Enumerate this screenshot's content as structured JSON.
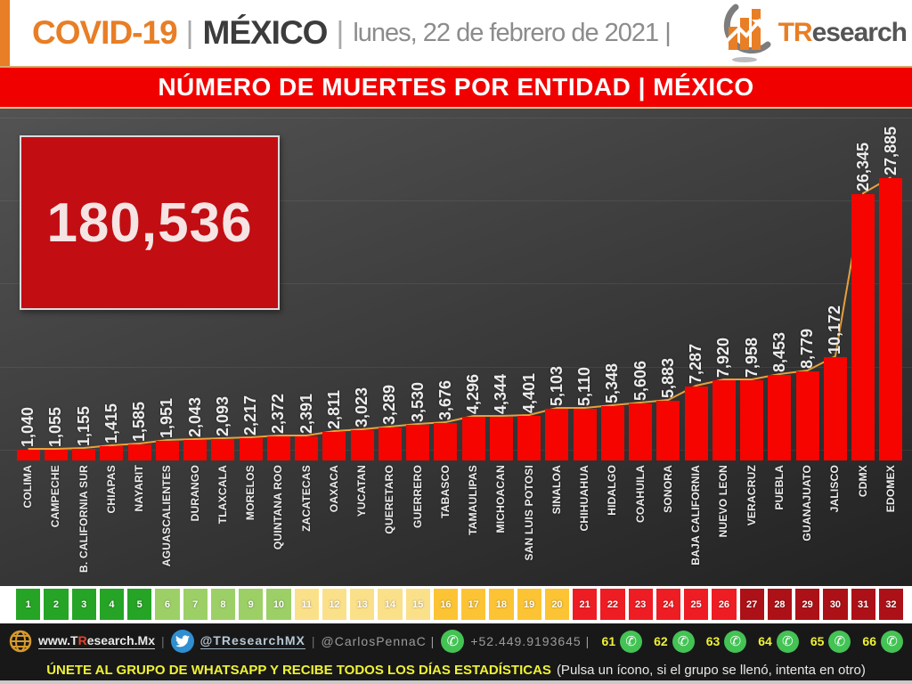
{
  "header": {
    "title": "COVID-19",
    "pipe": "|",
    "country": "MÉXICO",
    "date": "lunes, 22 de febrero de 2021 |",
    "brand_or": "TR",
    "brand_gr": "esearch"
  },
  "banner": {
    "text": "NÚMERO DE MUERTES POR ENTIDAD | MÉXICO"
  },
  "total": {
    "value": "180,536"
  },
  "chart_data": {
    "type": "bar",
    "title": "NÚMERO DE MUERTES POR ENTIDAD | MÉXICO",
    "categories": [
      "COLIMA",
      "CAMPECHE",
      "B. CALIFORNIA SUR",
      "CHIAPAS",
      "NAYARIT",
      "AGUASCALIENTES",
      "DURANGO",
      "TLAXCALA",
      "MORELOS",
      "QUINTANA ROO",
      "ZACATECAS",
      "OAXACA",
      "YUCATAN",
      "QUERETARO",
      "GUERRERO",
      "TABASCO",
      "TAMAULIPAS",
      "MICHOACAN",
      "SAN LUIS POTOSI",
      "SINALOA",
      "CHIHUAHUA",
      "HIDALGO",
      "COAHUILA",
      "SONORA",
      "BAJA CALIFORNIA",
      "NUEVO LEON",
      "VERACRUZ",
      "PUEBLA",
      "GUANAJUATO",
      "JALISCO",
      "CDMX",
      "EDOMEX"
    ],
    "values": [
      1040,
      1055,
      1155,
      1415,
      1585,
      1951,
      2043,
      2093,
      2217,
      2372,
      2391,
      2811,
      3023,
      3289,
      3530,
      3676,
      4296,
      4344,
      4401,
      5103,
      5110,
      5348,
      5606,
      5883,
      7287,
      7920,
      7958,
      8453,
      8779,
      10172,
      26345,
      27885
    ],
    "value_labels": [
      "1,040",
      "1,055",
      "1,155",
      "1,415",
      "1,585",
      "1,951",
      "2,043",
      "2,093",
      "2,217",
      "2,372",
      "2,391",
      "2,811",
      "3,023",
      "3,289",
      "3,530",
      "3,676",
      "4,296",
      "4,344",
      "4,401",
      "5,103",
      "5,110",
      "5,348",
      "5,606",
      "5,883",
      "7,287",
      "7,920",
      "7,958",
      "8,453",
      "8,779",
      "10,172",
      "26,345",
      "27,885"
    ],
    "total": 180536,
    "xlabel": "",
    "ylabel": "",
    "ylim": [
      0,
      28000
    ],
    "grid": "faint horizontal",
    "bar_color": "#F50400",
    "line_color": "#F2A73B"
  },
  "scale": {
    "groups": [
      {
        "from": 1,
        "to": 5,
        "color": "#26A426"
      },
      {
        "from": 6,
        "to": 10,
        "color": "#9CD066"
      },
      {
        "from": 11,
        "to": 15,
        "color": "#FBE08A"
      },
      {
        "from": 16,
        "to": 20,
        "color": "#FCC434"
      },
      {
        "from": 21,
        "to": 26,
        "color": "#EE1D23"
      },
      {
        "from": 27,
        "to": 32,
        "color": "#AC1117"
      }
    ]
  },
  "footer": {
    "website_pre": "www.T",
    "website_r": "R",
    "website_post": "esearch.Mx",
    "sep": "|",
    "twitter": "@TResearchMX",
    "handle": "@CarlosPennaC |",
    "phone": "+52.449.9193645 |",
    "whatsapp_numbers": [
      "61",
      "62",
      "63",
      "64",
      "65",
      "66"
    ],
    "cta_main": "ÚNETE AL GRUPO DE WHATSAPP Y RECIBE TODOS LOS DÍAS ESTADÍSTICAS",
    "cta_note": "(Pulsa un ícono, si el grupo se llenó, intenta en otro)"
  }
}
